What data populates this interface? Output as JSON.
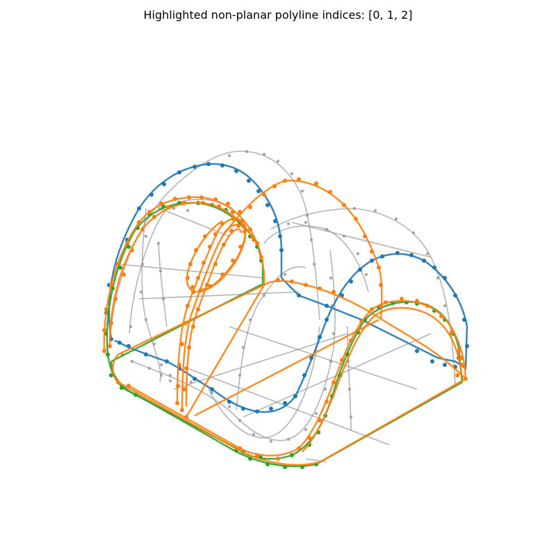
{
  "title": "Highlighted non-planar polyline indices: [0, 1, 2]",
  "colors": {
    "background_wire": "#999999",
    "series_0": "#1f77b4",
    "series_1": "#ff7f0e",
    "series_2": "#2ca02c"
  },
  "highlighted_indices": [
    0,
    1,
    2
  ]
}
